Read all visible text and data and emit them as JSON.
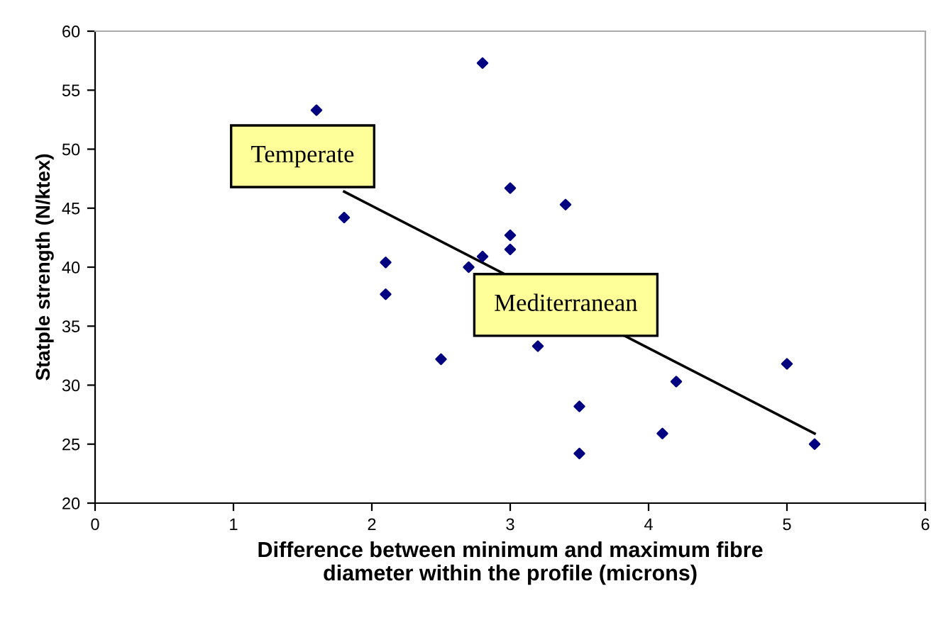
{
  "chart_data": {
    "type": "scatter",
    "xlabel": "Difference between minimum and maximum fibre\ndiameter within the profile (microns)",
    "ylabel": "Statple strength (N/ktex)",
    "xlim": [
      0,
      6
    ],
    "ylim": [
      20,
      60
    ],
    "xticks": [
      0,
      1,
      2,
      3,
      4,
      5,
      6
    ],
    "yticks": [
      20,
      25,
      30,
      35,
      40,
      45,
      50,
      55,
      60
    ],
    "grid": false,
    "legend": false,
    "series": [
      {
        "marker": "diamond",
        "color": "#000080",
        "x": [
          1.6,
          1.8,
          2.1,
          2.1,
          2.5,
          2.7,
          2.8,
          2.8,
          3.0,
          3.0,
          3.0,
          3.2,
          3.4,
          3.5,
          3.5,
          4.1,
          4.2,
          5.0,
          5.2
        ],
        "values": [
          53.3,
          44.2,
          40.4,
          37.7,
          32.2,
          40.0,
          40.9,
          57.3,
          46.7,
          42.7,
          41.5,
          33.3,
          45.3,
          28.2,
          24.2,
          25.9,
          30.3,
          31.8,
          25.0
        ]
      },
      {
        "type": "line",
        "marker": "none",
        "color": "#000000",
        "x": [
          1.8,
          5.2
        ],
        "values": [
          46.4,
          25.9
        ]
      }
    ],
    "annotations": [
      "Temperate",
      "Mediterranean"
    ]
  }
}
